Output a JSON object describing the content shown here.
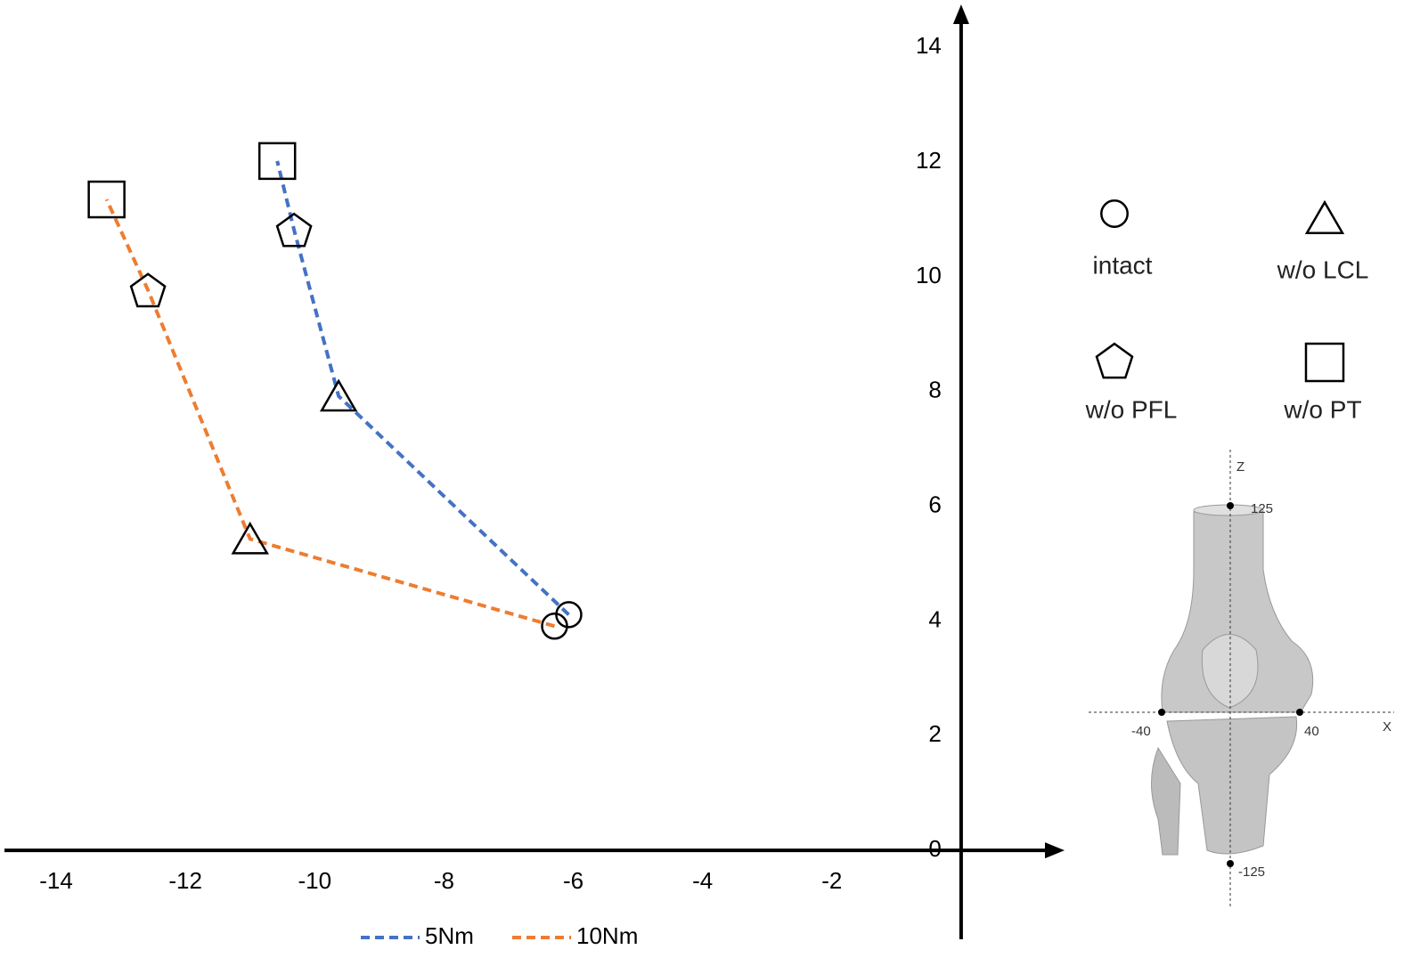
{
  "chart_data": {
    "type": "line",
    "xlim": [
      -14.8,
      1.6
    ],
    "ylim": [
      -1.55,
      14.75
    ],
    "xticks": [
      -14,
      -12,
      -10,
      -8,
      -6,
      -4,
      -2
    ],
    "yticks": [
      0,
      2,
      4,
      6,
      8,
      10,
      12,
      14
    ],
    "grid": false,
    "categories": [
      "intact",
      "w/o LCL",
      "w/o PFL",
      "w/o PT"
    ],
    "markers": [
      "circle",
      "triangle",
      "pentagon",
      "square"
    ],
    "series": [
      {
        "name": "5Nm",
        "color": "#4472c4",
        "x": [
          -6.07,
          -9.63,
          -10.32,
          -10.58
        ],
        "values": [
          4.11,
          7.92,
          10.82,
          12.02
        ]
      },
      {
        "name": "10Nm",
        "color": "#ed7d31",
        "x": [
          -6.29,
          -11.0,
          -12.58,
          -13.22
        ],
        "values": [
          3.91,
          5.43,
          9.77,
          11.35
        ]
      }
    ],
    "inset_labels": {
      "z": "Z",
      "x": "X",
      "top": "125",
      "bottom": "-125",
      "left": "-40",
      "right": "40"
    }
  }
}
